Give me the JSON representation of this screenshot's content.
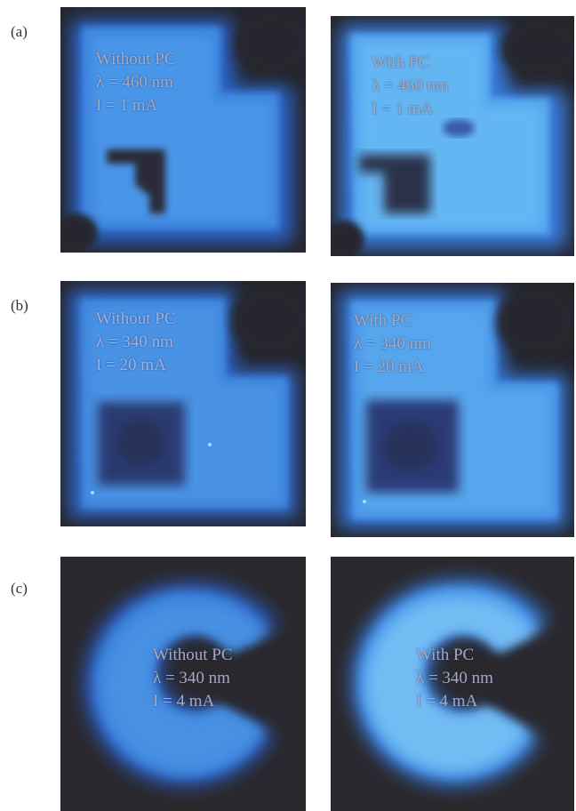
{
  "rows": [
    {
      "label": "(a)",
      "panels": [
        {
          "lines": [
            "Without PC",
            "λ = 460 nm",
            "I = 1 mA"
          ]
        },
        {
          "lines": [
            "With PC",
            "λ = 460 nm",
            "I = 1 mA"
          ]
        }
      ]
    },
    {
      "label": "(b)",
      "panels": [
        {
          "lines": [
            "Without PC",
            "λ = 340 nm",
            "I = 20 mA"
          ]
        },
        {
          "lines": [
            "With PC",
            "λ = 340 nm",
            "I = 20 mA"
          ]
        }
      ]
    },
    {
      "label": "(c)",
      "panels": [
        {
          "lines": [
            "Without PC",
            "λ = 340 nm",
            "I = 4 mA"
          ]
        },
        {
          "lines": [
            "With PC",
            "λ = 340 nm",
            "I = 4 mA"
          ]
        }
      ]
    }
  ],
  "colors": {
    "background": "#2a2930",
    "glow_dim": "#2f6fd0",
    "glow_bright": "#4fa8f0",
    "caption": "#9fb0dc"
  }
}
